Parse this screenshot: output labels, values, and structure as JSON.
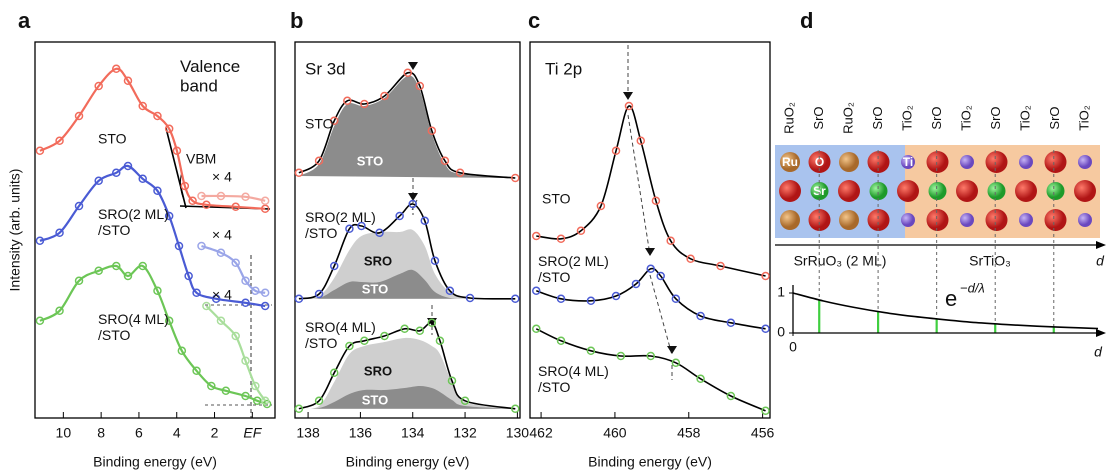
{
  "chart_data": [
    {
      "type": "line",
      "label": "a",
      "title": "Valence\nband",
      "xlabel": "Binding energy (eV)",
      "ylabel": "Intensity (arb. units)",
      "annotation": "VBM",
      "xlim": [
        11.5,
        -1.2
      ],
      "xticks": [
        10,
        8,
        6,
        4,
        2,
        {
          "value": 0,
          "label": "EF"
        }
      ],
      "ylim": [
        0.7,
        10.1
      ],
      "series": [
        {
          "name": "STO",
          "color": "#f26b5b",
          "x": [
            11.24,
            10.2,
            9.17,
            8.13,
            7.2,
            6.58,
            5.8,
            5.02,
            4.4,
            3.99,
            3.57,
            3.16,
            2.43,
            0.88,
            -0.68
          ],
          "values": [
            7.38,
            7.63,
            8.25,
            9.0,
            9.43,
            9.13,
            8.5,
            8.25,
            7.93,
            7.38,
            6.5,
            6.13,
            6.03,
            5.98,
            5.93
          ]
        },
        {
          "name": "× 4",
          "color": "#f4a9a0",
          "x": [
            2.69,
            1.66,
            0.36,
            -0.68
          ],
          "values": [
            6.25,
            6.25,
            6.23,
            6.13
          ]
        },
        {
          "name": "SRO(2 ML)\n/STO",
          "color": "#4a5bd4",
          "x": [
            11.24,
            10.2,
            9.17,
            8.13,
            7.2,
            6.58,
            5.8,
            5.02,
            4.4,
            3.88,
            3.37,
            2.95,
            1.91,
            0.36,
            -0.68
          ],
          "values": [
            5.13,
            5.33,
            6.0,
            6.63,
            6.83,
            7.0,
            6.68,
            6.38,
            5.75,
            5.0,
            4.25,
            3.83,
            3.68,
            3.58,
            3.5
          ]
        },
        {
          "name": "× 4",
          "color": "#9aa5e8",
          "x": [
            2.69,
            1.66,
            0.88,
            0.36,
            -0.16,
            -0.68
          ],
          "values": [
            5.0,
            4.83,
            4.58,
            4.13,
            3.88,
            3.83
          ]
        },
        {
          "name": "SRO(4 ML)\n/STO",
          "color": "#6cc656",
          "x": [
            11.24,
            10.2,
            9.17,
            8.13,
            7.2,
            6.58,
            5.8,
            5.02,
            4.4,
            3.73,
            2.95,
            2.17,
            1.4,
            0.36,
            -0.26,
            -0.78
          ],
          "values": [
            3.13,
            3.38,
            4.13,
            4.38,
            4.5,
            4.25,
            4.5,
            3.88,
            3.13,
            2.38,
            1.88,
            1.5,
            1.38,
            1.25,
            1.13,
            1.05
          ]
        },
        {
          "name": "× 4",
          "color": "#a9de9c",
          "x": [
            2.43,
            1.66,
            0.88,
            0.36,
            -0.16,
            -0.68
          ],
          "values": [
            3.5,
            3.13,
            2.75,
            2.13,
            1.5,
            1.13
          ]
        }
      ]
    },
    {
      "type": "line",
      "label": "b",
      "title": "Sr 3d",
      "xlabel": "Binding energy (eV)",
      "fit": true,
      "xlim": [
        138.5,
        129.9
      ],
      "xticks": [
        138,
        136,
        134,
        132,
        130
      ],
      "ylim": [
        0.7,
        10.1
      ],
      "series": [
        {
          "name": "STO",
          "color": "#f26b5b",
          "x": [
            138.35,
            137.58,
            137.0,
            136.5,
            135.85,
            135.08,
            134.19,
            133.73,
            133.27,
            132.77,
            132.19,
            130.08
          ],
          "values": [
            6.83,
            7.13,
            8.13,
            8.63,
            8.55,
            8.75,
            9.33,
            9.0,
            7.88,
            7.13,
            6.83,
            6.7
          ],
          "components": [
            {
              "name": "STO",
              "color": "#8c8c8c",
              "x": [
                138.35,
                137.58,
                137.0,
                136.5,
                135.85,
                135.08,
                134.19,
                133.73,
                133.27,
                132.77,
                132.19,
                130.08
              ],
              "values": [
                6.75,
                7.05,
                8.0,
                8.55,
                8.5,
                8.7,
                9.25,
                8.9,
                7.8,
                7.05,
                6.8,
                6.7
              ]
            }
          ]
        },
        {
          "name": "SRO(2 ML)\n/STO",
          "color": "#4a5bd4",
          "x": [
            138.35,
            137.58,
            137.0,
            136.42,
            135.96,
            135.27,
            134.5,
            134.0,
            133.54,
            133.15,
            132.58,
            131.81,
            130.08
          ],
          "values": [
            3.68,
            3.8,
            4.5,
            5.43,
            5.5,
            5.33,
            5.75,
            6.05,
            5.63,
            4.63,
            3.88,
            3.7,
            3.68
          ],
          "components": [
            {
              "name": "SRO",
              "color": "#cfcfcf",
              "x": [
                138.35,
                137.58,
                137.0,
                136.42,
                135.96,
                135.27,
                134.5,
                134.0,
                133.54,
                133.15,
                132.58,
                131.81,
                130.08
              ],
              "values": [
                3.68,
                3.75,
                4.2,
                4.9,
                5.25,
                5.35,
                5.35,
                5.4,
                5.0,
                4.3,
                3.85,
                3.7,
                3.68
              ]
            },
            {
              "name": "STO",
              "color": "#8c8c8c",
              "x": [
                138.35,
                137.58,
                137.0,
                136.42,
                135.96,
                135.27,
                134.5,
                134.0,
                133.54,
                133.15,
                132.58,
                131.81,
                130.08
              ],
              "values": [
                3.68,
                3.7,
                3.9,
                4.1,
                4.1,
                4.1,
                4.3,
                4.4,
                4.15,
                3.85,
                3.7,
                3.68,
                3.68
              ]
            }
          ]
        },
        {
          "name": "SRO(4 ML)\n/STO",
          "color": "#6cc656",
          "x": [
            138.35,
            137.58,
            137.0,
            136.42,
            135.85,
            135.08,
            134.31,
            133.73,
            133.27,
            132.96,
            132.5,
            132.0,
            130.08
          ],
          "values": [
            0.93,
            1.13,
            1.83,
            2.5,
            2.63,
            2.75,
            2.93,
            2.88,
            3.08,
            2.63,
            1.63,
            1.13,
            0.93
          ],
          "components": [
            {
              "name": "SRO",
              "color": "#cfcfcf",
              "x": [
                138.35,
                137.58,
                137.0,
                136.42,
                135.85,
                135.08,
                134.31,
                133.73,
                133.27,
                132.96,
                132.5,
                132.0,
                130.08
              ],
              "values": [
                0.93,
                1.0,
                1.6,
                2.3,
                2.5,
                2.6,
                2.7,
                2.65,
                2.5,
                2.3,
                1.6,
                1.1,
                0.93
              ]
            },
            {
              "name": "STO",
              "color": "#8c8c8c",
              "x": [
                138.35,
                137.58,
                137.0,
                136.42,
                135.85,
                135.08,
                134.31,
                133.73,
                133.27,
                132.96,
                132.5,
                132.0,
                130.08
              ],
              "values": [
                0.93,
                0.95,
                1.1,
                1.3,
                1.4,
                1.4,
                1.45,
                1.5,
                1.45,
                1.35,
                1.15,
                1.0,
                0.93
              ]
            }
          ]
        }
      ]
    },
    {
      "type": "line",
      "label": "c",
      "title": "Ti 2p",
      "xlabel": "Binding energy (eV)",
      "fit": true,
      "xlim": [
        462.3,
        455.8
      ],
      "xticks": [
        462,
        460,
        458,
        456
      ],
      "ylim": [
        0.7,
        10.1
      ],
      "series": [
        {
          "name": "STO",
          "color": "#f26b5b",
          "x": [
            462.13,
            461.46,
            460.92,
            460.38,
            459.97,
            459.62,
            459.3,
            458.89,
            458.49,
            457.95,
            457.14,
            455.92
          ],
          "values": [
            5.25,
            5.18,
            5.38,
            6.0,
            7.38,
            8.5,
            7.63,
            6.13,
            5.13,
            4.68,
            4.5,
            4.25
          ]
        },
        {
          "name": "SRO(2 ML)\n/STO",
          "color": "#4a5bd4",
          "x": [
            462.13,
            461.46,
            460.65,
            459.97,
            459.43,
            459.03,
            458.76,
            458.35,
            457.68,
            456.86,
            455.92
          ],
          "values": [
            3.88,
            3.68,
            3.63,
            3.75,
            4.05,
            4.43,
            4.25,
            3.68,
            3.25,
            3.08,
            2.93
          ]
        },
        {
          "name": "SRO(4 ML)\n/STO",
          "color": "#6cc656",
          "x": [
            462.13,
            461.46,
            460.65,
            459.84,
            459.03,
            458.35,
            457.68,
            456.86,
            455.92
          ],
          "values": [
            2.93,
            2.63,
            2.38,
            2.25,
            2.25,
            2.08,
            1.68,
            1.25,
            0.88
          ]
        }
      ]
    },
    {
      "type": "line",
      "label": "d",
      "xlabel": "d",
      "formula": {
        "base": "e",
        "exponent": "−d/λ"
      },
      "xlim": [
        0,
        10
      ],
      "xticks": [
        0
      ],
      "ylim": [
        0,
        1
      ],
      "yticks": [
        0,
        1
      ],
      "x": [
        0,
        1,
        2,
        3,
        4,
        5,
        6,
        7,
        8,
        9,
        10
      ],
      "values": [
        1,
        0.8,
        0.64,
        0.51,
        0.41,
        0.33,
        0.26,
        0.21,
        0.17,
        0.14,
        0.11
      ],
      "color": "#000000",
      "bars": {
        "color": "#3fcf3f",
        "x": [
          0.86,
          2.79,
          4.71,
          6.63,
          8.55
        ],
        "values": [
          0.83,
          0.54,
          0.35,
          0.23,
          0.15
        ]
      }
    }
  ],
  "structure_diagram": {
    "layers": [
      "RuO₂",
      "SrO",
      "RuO₂",
      "SrO",
      "TiO₂",
      "SrO",
      "TiO₂",
      "SrO",
      "TiO₂",
      "SrO",
      "TiO₂"
    ],
    "atoms": {
      "Ru": "Ru",
      "O": "O",
      "Sr": "Sr",
      "Ti": "Ti"
    },
    "regions": [
      "SrRuO₃ (2 ML)",
      "SrTiO₃"
    ],
    "depth_label": "d"
  }
}
